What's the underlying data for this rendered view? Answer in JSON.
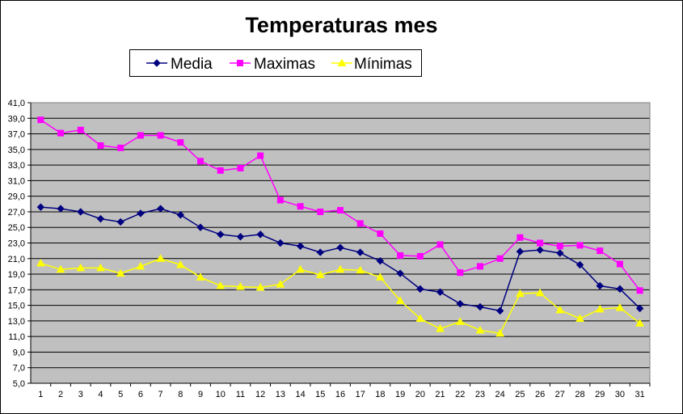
{
  "chart_data": {
    "type": "line",
    "title": "Temperaturas mes",
    "xlabel": "",
    "ylabel": "",
    "x": [
      1,
      2,
      3,
      4,
      5,
      6,
      7,
      8,
      9,
      10,
      11,
      12,
      13,
      14,
      15,
      16,
      17,
      18,
      19,
      20,
      21,
      22,
      23,
      24,
      25,
      26,
      27,
      28,
      29,
      30,
      31
    ],
    "ylim": [
      5.0,
      41.0
    ],
    "yticks": [
      "5,0",
      "7,0",
      "9,0",
      "11,0",
      "13,0",
      "15,0",
      "17,0",
      "19,0",
      "21,0",
      "23,0",
      "25,0",
      "27,0",
      "29,0",
      "31,0",
      "33,0",
      "35,0",
      "37,0",
      "39,0",
      "41,0"
    ],
    "grid": true,
    "legend_position": "top",
    "series": [
      {
        "name": "Media",
        "color": "#000080",
        "marker": "diamond",
        "values": [
          27.6,
          27.4,
          27.0,
          26.1,
          25.7,
          26.8,
          27.4,
          26.6,
          25.0,
          24.1,
          23.8,
          24.1,
          23.0,
          22.6,
          21.8,
          22.4,
          21.8,
          20.7,
          19.1,
          17.1,
          16.7,
          15.2,
          14.8,
          14.3,
          21.9,
          22.1,
          21.7,
          20.2,
          17.5,
          17.1,
          14.6
        ]
      },
      {
        "name": "Maximas",
        "color": "#FF00FF",
        "marker": "square",
        "values": [
          38.8,
          37.1,
          37.5,
          35.5,
          35.2,
          36.8,
          36.8,
          35.9,
          33.5,
          32.3,
          32.6,
          34.2,
          28.5,
          27.7,
          27.0,
          27.2,
          25.5,
          24.2,
          21.4,
          21.3,
          22.8,
          19.2,
          20.0,
          21.0,
          23.7,
          23.0,
          22.6,
          22.7,
          22.0,
          20.3,
          16.9
        ]
      },
      {
        "name": "Mínimas",
        "color": "#FFFF00",
        "marker": "triangle",
        "values": [
          20.4,
          19.6,
          19.8,
          19.8,
          19.1,
          20.0,
          21.0,
          20.2,
          18.6,
          17.5,
          17.4,
          17.3,
          17.7,
          19.6,
          18.9,
          19.6,
          19.5,
          18.6,
          15.6,
          13.3,
          12.0,
          12.9,
          11.8,
          11.4,
          16.5,
          16.6,
          14.4,
          13.3,
          14.5,
          14.7,
          12.7
        ]
      }
    ]
  },
  "colors": {
    "plot_background": "#C0C0C0",
    "gridline": "#000000"
  }
}
